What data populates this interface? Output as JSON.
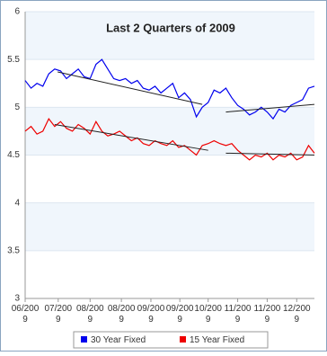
{
  "chart_data": {
    "type": "line",
    "title": "Last 2 Quarters of 2009",
    "x": [
      0,
      1,
      2,
      3,
      4,
      5,
      6,
      7,
      8,
      9,
      10,
      11,
      12,
      13,
      14,
      15,
      16,
      17,
      18,
      19,
      20,
      21,
      22,
      23,
      24,
      25,
      26,
      27,
      28,
      29,
      30,
      31,
      32,
      33,
      34,
      35,
      36,
      37,
      38,
      39,
      40,
      41,
      42,
      43,
      44,
      45,
      46,
      47,
      48,
      49
    ],
    "xlim": [
      0,
      49
    ],
    "xticks": [
      {
        "value": 0,
        "label": "06/2009"
      },
      {
        "value": 5.6,
        "label": "07/2009"
      },
      {
        "value": 11,
        "label": "08/2009"
      },
      {
        "value": 16.3,
        "label": "08/2009"
      },
      {
        "value": 21.3,
        "label": "09/2009"
      },
      {
        "value": 26.2,
        "label": "09/2009"
      },
      {
        "value": 31,
        "label": "10/2009"
      },
      {
        "value": 36,
        "label": "11/2009"
      },
      {
        "value": 41,
        "label": "11/2009"
      },
      {
        "value": 46,
        "label": "12/2009"
      }
    ],
    "ylim": [
      3,
      6
    ],
    "yticks": [
      3,
      3.5,
      4,
      4.5,
      5,
      5.5,
      6
    ],
    "grid": true,
    "series": [
      {
        "name": "30 Year Fixed",
        "color": "#0000ee",
        "values": [
          5.28,
          5.2,
          5.25,
          5.22,
          5.35,
          5.4,
          5.38,
          5.3,
          5.35,
          5.4,
          5.32,
          5.3,
          5.45,
          5.5,
          5.4,
          5.3,
          5.28,
          5.3,
          5.25,
          5.28,
          5.2,
          5.18,
          5.22,
          5.15,
          5.2,
          5.25,
          5.1,
          5.15,
          5.08,
          4.9,
          5.0,
          5.05,
          5.18,
          5.15,
          5.2,
          5.1,
          5.02,
          4.98,
          4.92,
          4.95,
          5.0,
          4.95,
          4.88,
          4.98,
          4.95,
          5.02,
          5.05,
          5.08,
          5.2,
          5.22
        ]
      },
      {
        "name": "15 Year Fixed",
        "color": "#ee0000",
        "values": [
          4.75,
          4.8,
          4.72,
          4.75,
          4.88,
          4.8,
          4.85,
          4.78,
          4.75,
          4.82,
          4.78,
          4.72,
          4.85,
          4.75,
          4.7,
          4.72,
          4.75,
          4.7,
          4.65,
          4.68,
          4.62,
          4.6,
          4.65,
          4.62,
          4.6,
          4.65,
          4.58,
          4.6,
          4.55,
          4.5,
          4.6,
          4.62,
          4.65,
          4.62,
          4.6,
          4.62,
          4.55,
          4.5,
          4.45,
          4.5,
          4.48,
          4.52,
          4.45,
          4.5,
          4.48,
          4.52,
          4.45,
          4.48,
          4.6,
          4.52
        ]
      }
    ],
    "trendlines": [
      {
        "x": [
          5.5,
          30
        ],
        "values": [
          5.37,
          5.03
        ]
      },
      {
        "x": [
          34,
          49
        ],
        "values": [
          4.95,
          5.03
        ]
      },
      {
        "x": [
          5,
          31
        ],
        "values": [
          4.82,
          4.55
        ]
      },
      {
        "x": [
          34,
          49
        ],
        "values": [
          4.52,
          4.5
        ]
      }
    ],
    "legend": "bottom"
  }
}
